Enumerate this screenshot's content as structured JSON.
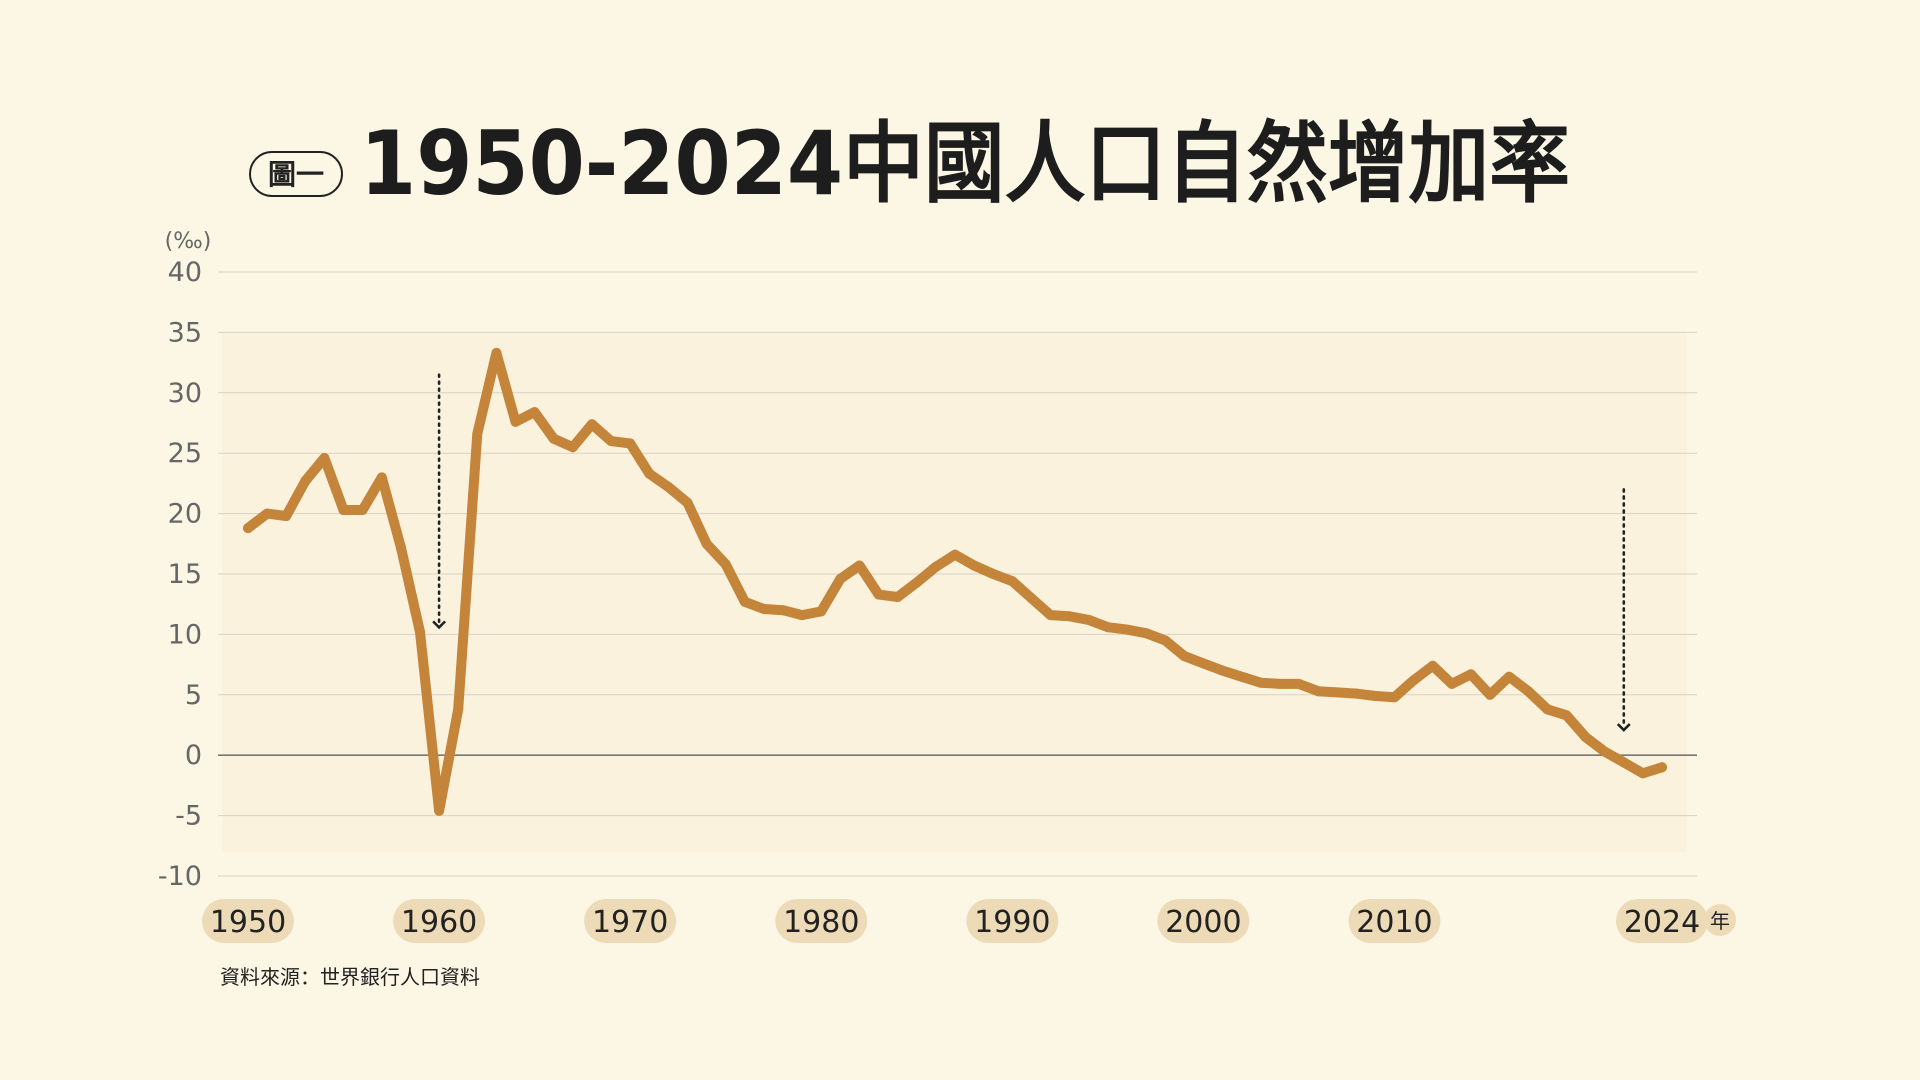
{
  "figure": {
    "badge": "圖一",
    "title": "1950-2024中國人口自然增加率",
    "source": "資料來源：世界銀行人口資料",
    "unit_label": "(‰)",
    "x_unit": "年"
  },
  "colors": {
    "background": "#fcf7e5",
    "plot_area": "#faf2dc",
    "line": "#c4843a",
    "badge_fill": "#eddbb8",
    "text": "#222222",
    "axis_text": "#666666",
    "grid": "#d7d2c4"
  },
  "chart_data": {
    "type": "line",
    "title": "1950-2024中國人口自然增加率",
    "ylabel": "(‰)",
    "xlabel": "年",
    "ylim": [
      -10,
      40
    ],
    "xlim": [
      1950,
      2024
    ],
    "yticks": [
      -10,
      -5,
      0,
      5,
      10,
      15,
      20,
      25,
      30,
      35,
      40
    ],
    "xtick_labels": [
      "1950",
      "1960",
      "1970",
      "1980",
      "1990",
      "2000",
      "2010",
      "2024"
    ],
    "xticks": [
      1950,
      1960,
      1970,
      1980,
      1990,
      2000,
      2010,
      2024
    ],
    "grid": true,
    "series": [
      {
        "x": [
          1950,
          1951,
          1952,
          1953,
          1954,
          1955,
          1956,
          1957,
          1958,
          1959,
          1960,
          1961,
          1962,
          1963,
          1964,
          1965,
          1966,
          1967,
          1968,
          1969,
          1970,
          1971,
          1972,
          1973,
          1974,
          1975,
          1976,
          1977,
          1978,
          1979,
          1980,
          1981,
          1982,
          1983,
          1984,
          1985,
          1986,
          1987,
          1988,
          1989,
          1990,
          1991,
          1992,
          1993,
          1994,
          1995,
          1996,
          1997,
          1998,
          1999,
          2000,
          2001,
          2002,
          2003,
          2004,
          2005,
          2006,
          2007,
          2008,
          2009,
          2010,
          2011,
          2012,
          2013,
          2014,
          2015,
          2016,
          2017,
          2018,
          2019,
          2020,
          2021,
          2022,
          2023,
          2024
        ],
        "values": [
          18.8,
          20.0,
          19.8,
          22.7,
          24.6,
          20.3,
          20.3,
          23.0,
          17.2,
          10.2,
          -4.6,
          3.8,
          26.6,
          33.3,
          27.6,
          28.4,
          26.2,
          25.5,
          27.4,
          26.0,
          25.8,
          23.3,
          22.2,
          20.9,
          17.5,
          15.8,
          12.7,
          12.1,
          12.0,
          11.6,
          11.9,
          14.6,
          15.7,
          13.3,
          13.1,
          14.3,
          15.6,
          16.6,
          15.7,
          15.0,
          14.4,
          13.0,
          11.6,
          11.5,
          11.2,
          10.6,
          10.4,
          10.1,
          9.5,
          8.2,
          7.6,
          7.0,
          6.5,
          6.0,
          5.9,
          5.9,
          5.3,
          5.2,
          5.1,
          4.9,
          4.8,
          6.2,
          7.4,
          5.9,
          6.7,
          5.0,
          6.5,
          5.3,
          3.8,
          3.3,
          1.5,
          0.3,
          -0.6,
          -1.5,
          -1.0
        ]
      }
    ],
    "annotations": [
      {
        "type": "arrow",
        "x": 1960,
        "from_y": 31.5,
        "to_y": 10.5
      },
      {
        "type": "arrow",
        "x": 2022,
        "from_y": 22,
        "to_y": 2
      }
    ]
  }
}
